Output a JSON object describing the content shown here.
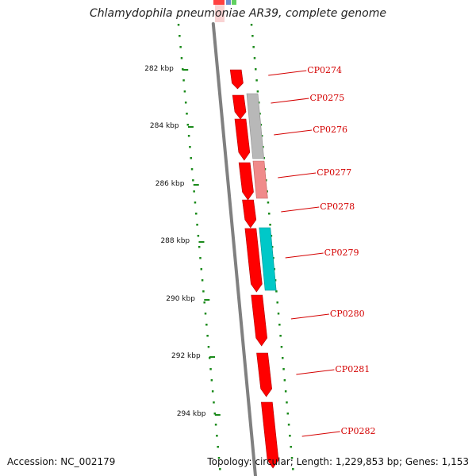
{
  "title": "Chlamydophila pneumoniae AR39, complete genome",
  "footer": {
    "accession": "Accession: NC_002179",
    "stats": "Topology: circular; Length: 1,229,853 bp; Genes: 1,153"
  },
  "colors": {
    "forward_gene": "#ff0000",
    "reverse_gene_grey": "#b8b8b8",
    "reverse_gene_pink": "#f08a8a",
    "reverse_gene_cyan": "#00c8c8",
    "backbone": "#808080",
    "tick_dots": "#1a8a1a",
    "gene_label": "#d40000"
  },
  "ticks": [
    {
      "label": "282 kbp"
    },
    {
      "label": "284 kbp"
    },
    {
      "label": "286 kbp"
    },
    {
      "label": "288 kbp"
    },
    {
      "label": "290 kbp"
    },
    {
      "label": "292 kbp"
    },
    {
      "label": "294 kbp"
    }
  ],
  "genes": [
    {
      "label": "CP0274"
    },
    {
      "label": "CP0275"
    },
    {
      "label": "CP0276"
    },
    {
      "label": "CP0277"
    },
    {
      "label": "CP0278"
    },
    {
      "label": "CP0279"
    },
    {
      "label": "CP0280"
    },
    {
      "label": "CP0281"
    },
    {
      "label": "CP0282"
    }
  ]
}
